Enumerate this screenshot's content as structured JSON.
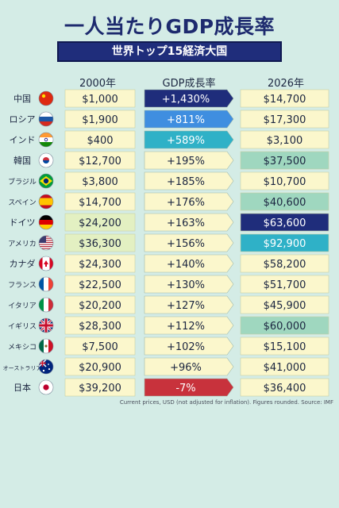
{
  "title": "一人当たりGDP成長率",
  "subtitle": "世界トップ15経済大国",
  "footnote": "Current prices, USD (not adjusted for inflation).  Figures rounded.  Source: IMF",
  "colors": {
    "background": "#d4ece6",
    "cell_light": "#fbf7cc",
    "navy": "#1f2d7b",
    "blue": "#3f8ee0",
    "teal": "#2fb1c7",
    "red": "#c8323c",
    "mint": "#9fd7bf"
  },
  "chart_data": {
    "type": "table",
    "columns": [
      "2000年",
      "GDP成長率",
      "2026年"
    ],
    "rows": [
      {
        "country": "中国",
        "flag": "china-flag",
        "gdp2000": "$1,000",
        "growth": "+1,430%",
        "gdp2026": "$14,700"
      },
      {
        "country": "ロシア",
        "flag": "russia-flag",
        "gdp2000": "$1,900",
        "growth": "+811%",
        "gdp2026": "$17,300"
      },
      {
        "country": "インド",
        "flag": "india-flag",
        "gdp2000": "$400",
        "growth": "+589%",
        "gdp2026": "$3,100"
      },
      {
        "country": "韓国",
        "flag": "korea-flag",
        "gdp2000": "$12,700",
        "growth": "+195%",
        "gdp2026": "$37,500"
      },
      {
        "country": "ブラジル",
        "flag": "brazil-flag",
        "gdp2000": "$3,800",
        "growth": "+185%",
        "gdp2026": "$10,700"
      },
      {
        "country": "スペイン",
        "flag": "spain-flag",
        "gdp2000": "$14,700",
        "growth": "+176%",
        "gdp2026": "$40,600"
      },
      {
        "country": "ドイツ",
        "flag": "germany-flag",
        "gdp2000": "$24,200",
        "growth": "+163%",
        "gdp2026": "$63,600"
      },
      {
        "country": "アメリカ",
        "flag": "usa-flag",
        "gdp2000": "$36,300",
        "growth": "+156%",
        "gdp2026": "$92,900"
      },
      {
        "country": "カナダ",
        "flag": "canada-flag",
        "gdp2000": "$24,300",
        "growth": "+140%",
        "gdp2026": "$58,200"
      },
      {
        "country": "フランス",
        "flag": "france-flag",
        "gdp2000": "$22,500",
        "growth": "+130%",
        "gdp2026": "$51,700"
      },
      {
        "country": "イタリア",
        "flag": "italy-flag",
        "gdp2000": "$20,200",
        "growth": "+127%",
        "gdp2026": "$45,900"
      },
      {
        "country": "イギリス",
        "flag": "uk-flag",
        "gdp2000": "$28,300",
        "growth": "+112%",
        "gdp2026": "$60,000"
      },
      {
        "country": "メキシコ",
        "flag": "mexico-flag",
        "gdp2000": "$7,500",
        "growth": "+102%",
        "gdp2026": "$15,100"
      },
      {
        "country": "オーストラリア",
        "flag": "australia-flag",
        "gdp2000": "$20,900",
        "growth": "+96%",
        "gdp2026": "$41,000"
      },
      {
        "country": "日本",
        "flag": "japan-flag",
        "gdp2000": "$39,200",
        "growth": "-7%",
        "gdp2026": "$36,400"
      }
    ],
    "cell_fill": {
      "gdp2000": [
        "light",
        "light",
        "light",
        "light",
        "light",
        "light",
        "green",
        "green",
        "light",
        "light",
        "light",
        "light",
        "light",
        "light",
        "light"
      ],
      "growth": [
        "navy",
        "blue",
        "teal",
        "light",
        "light",
        "light",
        "light",
        "light",
        "light",
        "light",
        "light",
        "light",
        "light",
        "light",
        "red"
      ],
      "gdp2026": [
        "light",
        "light",
        "light",
        "mint",
        "light",
        "mint",
        "navy",
        "teal",
        "light",
        "light",
        "light",
        "mint",
        "light",
        "light",
        "light"
      ]
    }
  }
}
